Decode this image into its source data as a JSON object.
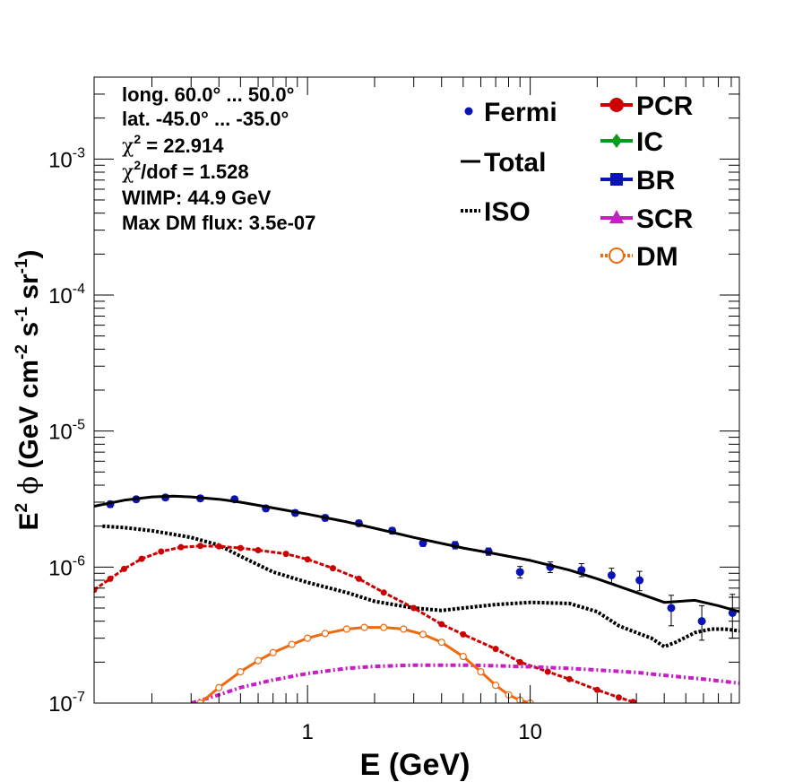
{
  "chart_data": {
    "type": "line",
    "scale": {
      "x": "log",
      "y": "log"
    },
    "xlabel": "E (GeV)",
    "ylabel": {
      "base": "E",
      "sup1": "2",
      "phi": "ϕ",
      "text": "(GeV cm",
      "sup2": "-2",
      "s": " s",
      "sup3": "-1",
      "sr": " sr",
      "sup4": "-1",
      "close": ")"
    },
    "xlim": [
      0.11,
      87
    ],
    "ylim": [
      1e-07,
      0.004
    ],
    "x_ticks": [
      {
        "value": 1,
        "label": "1"
      },
      {
        "value": 10,
        "label": "10"
      }
    ],
    "y_ticks": [
      {
        "value": 1e-07,
        "base": "10",
        "exp": "-7"
      },
      {
        "value": 1e-06,
        "base": "10",
        "exp": "-6"
      },
      {
        "value": 1e-05,
        "base": "10",
        "exp": "-5"
      },
      {
        "value": 0.0001,
        "base": "10",
        "exp": "-4"
      },
      {
        "value": 0.001,
        "base": "10",
        "exp": "-3"
      }
    ],
    "info_box": {
      "long": "long. 60.0° ... 50.0°",
      "lat": "lat. -45.0° ... -35.0°",
      "chi2_sym": "χ",
      "chi2_rest": " = 22.914",
      "chi2dof_sym": "χ",
      "chi2dof_rest": "/dof = 1.528",
      "sup2": "2",
      "wimp": "WIMP: 44.9 GeV",
      "maxdm": "Max DM flux: 3.5e-07"
    },
    "legend": {
      "left": [
        {
          "label": "Fermi",
          "style": "dot",
          "color": "#0a14b4"
        },
        {
          "label": "Total",
          "style": "solid",
          "color": "#000000"
        },
        {
          "label": "ISO",
          "style": "dotted",
          "color": "#000000"
        }
      ],
      "right": [
        {
          "label": "PCR",
          "style": "circle",
          "color": "#cc0000"
        },
        {
          "label": "IC",
          "style": "diamond",
          "color": "#0a9a1e"
        },
        {
          "label": "BR",
          "style": "square",
          "color": "#0a14b4"
        },
        {
          "label": "SCR",
          "style": "triangle",
          "color": "#c41ec4"
        },
        {
          "label": "DM",
          "style": "opencircle",
          "color": "#ee6a10"
        }
      ]
    },
    "series": [
      {
        "name": "Fermi",
        "type": "points",
        "color": "#0a14b4",
        "x": [
          0.13,
          0.17,
          0.23,
          0.33,
          0.47,
          0.65,
          0.88,
          1.2,
          1.7,
          2.4,
          3.3,
          4.6,
          6.5,
          9.0,
          12.3,
          17.0,
          23.2,
          31.0,
          43.0,
          59.0,
          81.0
        ],
        "y": [
          2.9e-06,
          3.15e-06,
          3.25e-06,
          3.2e-06,
          3.15e-06,
          2.7e-06,
          2.5e-06,
          2.3e-06,
          2.1e-06,
          1.85e-06,
          1.5e-06,
          1.45e-06,
          1.3e-06,
          9.2e-07,
          1e-06,
          9.5e-07,
          8.7e-07,
          8e-07,
          5e-07,
          4e-07,
          4.6e-07
        ],
        "err_lo": [
          2.75e-06,
          3e-06,
          3.1e-06,
          3.05e-06,
          3e-06,
          2.57e-06,
          2.38e-06,
          2.18e-06,
          1.99e-06,
          1.75e-06,
          1.42e-06,
          1.36e-06,
          1.22e-06,
          8.3e-07,
          9.1e-07,
          8.5e-07,
          7.6e-07,
          6.7e-07,
          3.7e-07,
          2.9e-07,
          3e-07
        ],
        "err_hi": [
          3.05e-06,
          3.3e-06,
          3.4e-06,
          3.35e-06,
          3.3e-06,
          2.83e-06,
          2.62e-06,
          2.42e-06,
          2.21e-06,
          1.95e-06,
          1.58e-06,
          1.54e-06,
          1.38e-06,
          1.01e-06,
          1.09e-06,
          1.06e-06,
          9.8e-07,
          9.3e-07,
          6.2e-07,
          5.2e-07,
          6.3e-07
        ]
      },
      {
        "name": "Total",
        "type": "solid",
        "color": "#000000",
        "x": [
          0.11,
          0.15,
          0.2,
          0.25,
          0.3,
          0.4,
          0.5,
          0.7,
          1.0,
          1.5,
          2.0,
          3.0,
          5.0,
          7.0,
          10.0,
          15.0,
          20.0,
          30.0,
          40.0,
          55.0,
          70.0,
          87.0
        ],
        "y": [
          2.8e-06,
          3.1e-06,
          3.28e-06,
          3.32e-06,
          3.28e-06,
          3.15e-06,
          3e-06,
          2.72e-06,
          2.45e-06,
          2.15e-06,
          1.93e-06,
          1.65e-06,
          1.38e-06,
          1.25e-06,
          1.12e-06,
          9.5e-07,
          8.2e-07,
          6.5e-07,
          5.5e-07,
          5.7e-07,
          5.2e-07,
          4.7e-07
        ]
      },
      {
        "name": "ISO",
        "type": "dotted",
        "color": "#000000",
        "x": [
          0.12,
          0.15,
          0.2,
          0.3,
          0.4,
          0.5,
          0.7,
          1.0,
          1.5,
          2.0,
          3.0,
          4.0,
          5.0,
          7.0,
          10.0,
          15.0,
          20.0,
          25.0,
          30.0,
          35.0,
          40.0,
          45.0,
          55.0,
          65.0,
          75.0,
          87.0
        ],
        "y": [
          2e-06,
          1.95e-06,
          1.85e-06,
          1.65e-06,
          1.45e-06,
          1.2e-06,
          9.2e-07,
          7.7e-07,
          6.5e-07,
          5.6e-07,
          5e-07,
          4.8e-07,
          5e-07,
          5.3e-07,
          5.5e-07,
          5.4e-07,
          4.7e-07,
          3.7e-07,
          3.3e-07,
          3e-07,
          2.6e-07,
          2.8e-07,
          3.3e-07,
          3.5e-07,
          3.5e-07,
          3.4e-07
        ]
      },
      {
        "name": "PCR",
        "type": "marked",
        "color": "#cc0000",
        "x": [
          0.11,
          0.13,
          0.15,
          0.18,
          0.22,
          0.27,
          0.33,
          0.4,
          0.5,
          0.6,
          0.8,
          1.0,
          1.3,
          1.7,
          2.2,
          3.0,
          4.0,
          5.0,
          7.0,
          9.0,
          12.0,
          15.0,
          20.0,
          25.0,
          29.0
        ],
        "y": [
          6.8e-07,
          8.2e-07,
          9.7e-07,
          1.15e-06,
          1.3e-06,
          1.4e-06,
          1.43e-06,
          1.42e-06,
          1.38e-06,
          1.33e-06,
          1.25e-06,
          1.14e-06,
          9.8e-07,
          8.2e-07,
          6.5e-07,
          5e-07,
          3.8e-07,
          3.2e-07,
          2.5e-07,
          2e-07,
          1.7e-07,
          1.5e-07,
          1.25e-07,
          1.1e-07,
          1.02e-07
        ]
      },
      {
        "name": "SCR",
        "type": "dashdot",
        "color": "#c41ec4",
        "x": [
          0.3,
          0.4,
          0.5,
          0.7,
          1.0,
          1.5,
          2.0,
          3.0,
          4.0,
          5.0,
          7.0,
          10.0,
          15.0,
          20.0,
          30.0,
          40.0,
          60.0,
          87.0
        ],
        "y": [
          1e-07,
          1.15e-07,
          1.3e-07,
          1.48e-07,
          1.65e-07,
          1.8e-07,
          1.86e-07,
          1.9e-07,
          1.9e-07,
          1.9e-07,
          1.88e-07,
          1.85e-07,
          1.8e-07,
          1.75e-07,
          1.68e-07,
          1.6e-07,
          1.5e-07,
          1.4e-07
        ]
      },
      {
        "name": "DM",
        "type": "openmarked",
        "color": "#ee6a10",
        "x": [
          0.33,
          0.4,
          0.5,
          0.6,
          0.7,
          0.85,
          1.0,
          1.2,
          1.5,
          1.8,
          2.2,
          2.7,
          3.3,
          4.0,
          5.0,
          6.0,
          7.0,
          8.0,
          9.0,
          10.0
        ],
        "y": [
          1e-07,
          1.3e-07,
          1.7e-07,
          2.05e-07,
          2.35e-07,
          2.7e-07,
          3e-07,
          3.25e-07,
          3.5e-07,
          3.6e-07,
          3.6e-07,
          3.5e-07,
          3.2e-07,
          2.8e-07,
          2.2e-07,
          1.7e-07,
          1.35e-07,
          1.15e-07,
          1.05e-07,
          1e-07
        ]
      }
    ]
  }
}
